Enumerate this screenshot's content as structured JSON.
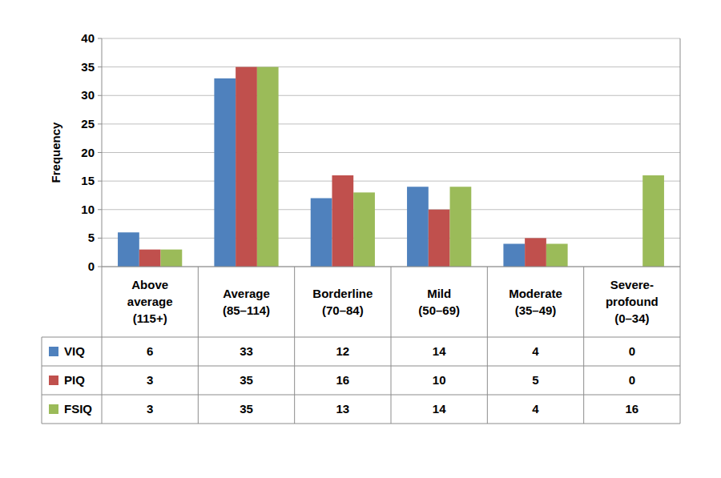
{
  "chart_data": {
    "type": "bar",
    "y_label": "Frequency",
    "categories": [
      "Above average (115+)",
      "Average (85–114)",
      "Borderline (70–84)",
      "Mild (50–69)",
      "Moderate (35–49)",
      "Severe-profound (0–34)"
    ],
    "series": [
      {
        "name": "VIQ",
        "color": "#4f81bd",
        "values": [
          6,
          33,
          12,
          14,
          4,
          0
        ]
      },
      {
        "name": "PIQ",
        "color": "#c0504d",
        "values": [
          3,
          35,
          16,
          10,
          5,
          0
        ]
      },
      {
        "name": "FSIQ",
        "color": "#9bbb59",
        "values": [
          3,
          35,
          13,
          14,
          4,
          16
        ]
      }
    ],
    "ylim": [
      0,
      40
    ],
    "yticks": [
      0,
      5,
      10,
      15,
      20,
      25,
      30,
      35,
      40
    ],
    "grid": true
  }
}
